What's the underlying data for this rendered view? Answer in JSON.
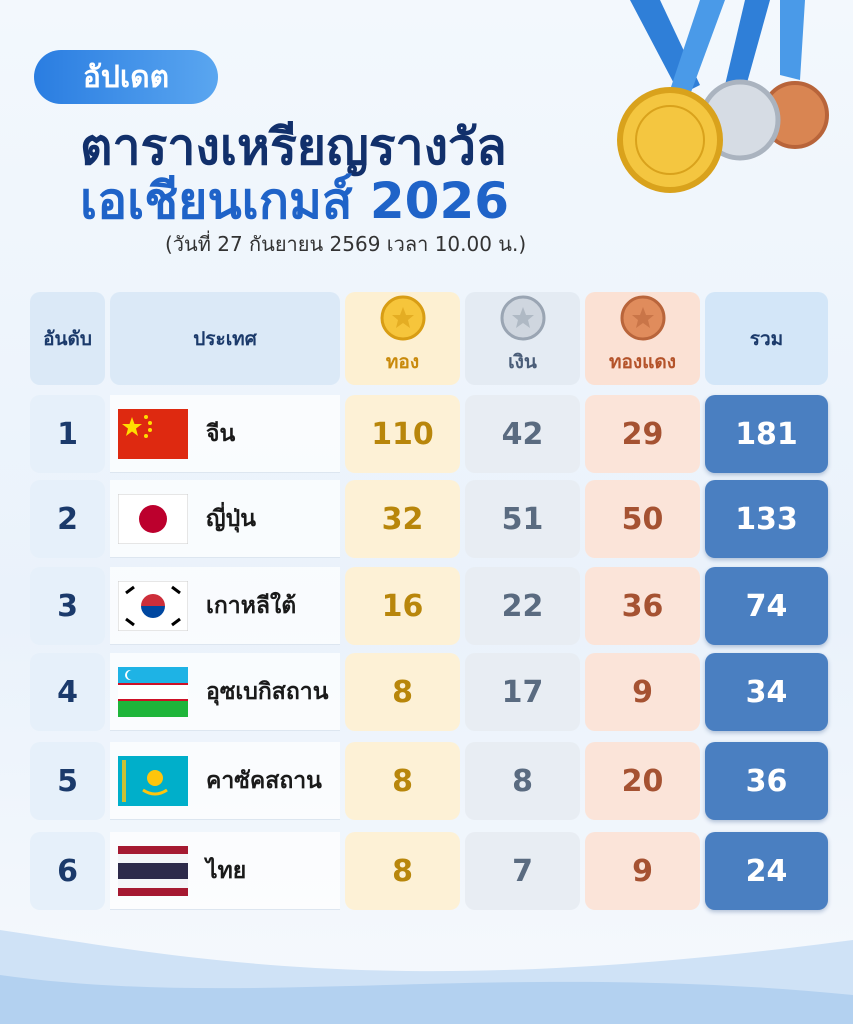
{
  "header": {
    "badge": "อัปเดต",
    "title_line1": "ตารางเหรียญรางวัล",
    "title_line2": "เอเชียนเกมส์ 2026",
    "subtitle": "(วันที่ 27 กันยายน 2569 เวลา 10.00 น.)"
  },
  "table": {
    "columns": [
      "อันดับ",
      "ประเทศ",
      "ทอง",
      "เงิน",
      "ทองแดง",
      "รวม"
    ],
    "rows": [
      {
        "rank": 1,
        "country": "จีน",
        "gold": 110,
        "silver": 42,
        "bronze": 29,
        "total": 181
      },
      {
        "rank": 2,
        "country": "ญี่ปุ่น",
        "gold": 32,
        "silver": 51,
        "bronze": 50,
        "total": 133
      },
      {
        "rank": 3,
        "country": "เกาหลีใต้",
        "gold": 16,
        "silver": 22,
        "bronze": 36,
        "total": 74
      },
      {
        "rank": 4,
        "country": "อุซเบกิสถาน",
        "gold": 8,
        "silver": 17,
        "bronze": 9,
        "total": 34
      },
      {
        "rank": 5,
        "country": "คาซัคสถาน",
        "gold": 8,
        "silver": 8,
        "bronze": 20,
        "total": 36
      },
      {
        "rank": 6,
        "country": "ไทย",
        "gold": 8,
        "silver": 7,
        "bronze": 9,
        "total": 24
      }
    ]
  }
}
